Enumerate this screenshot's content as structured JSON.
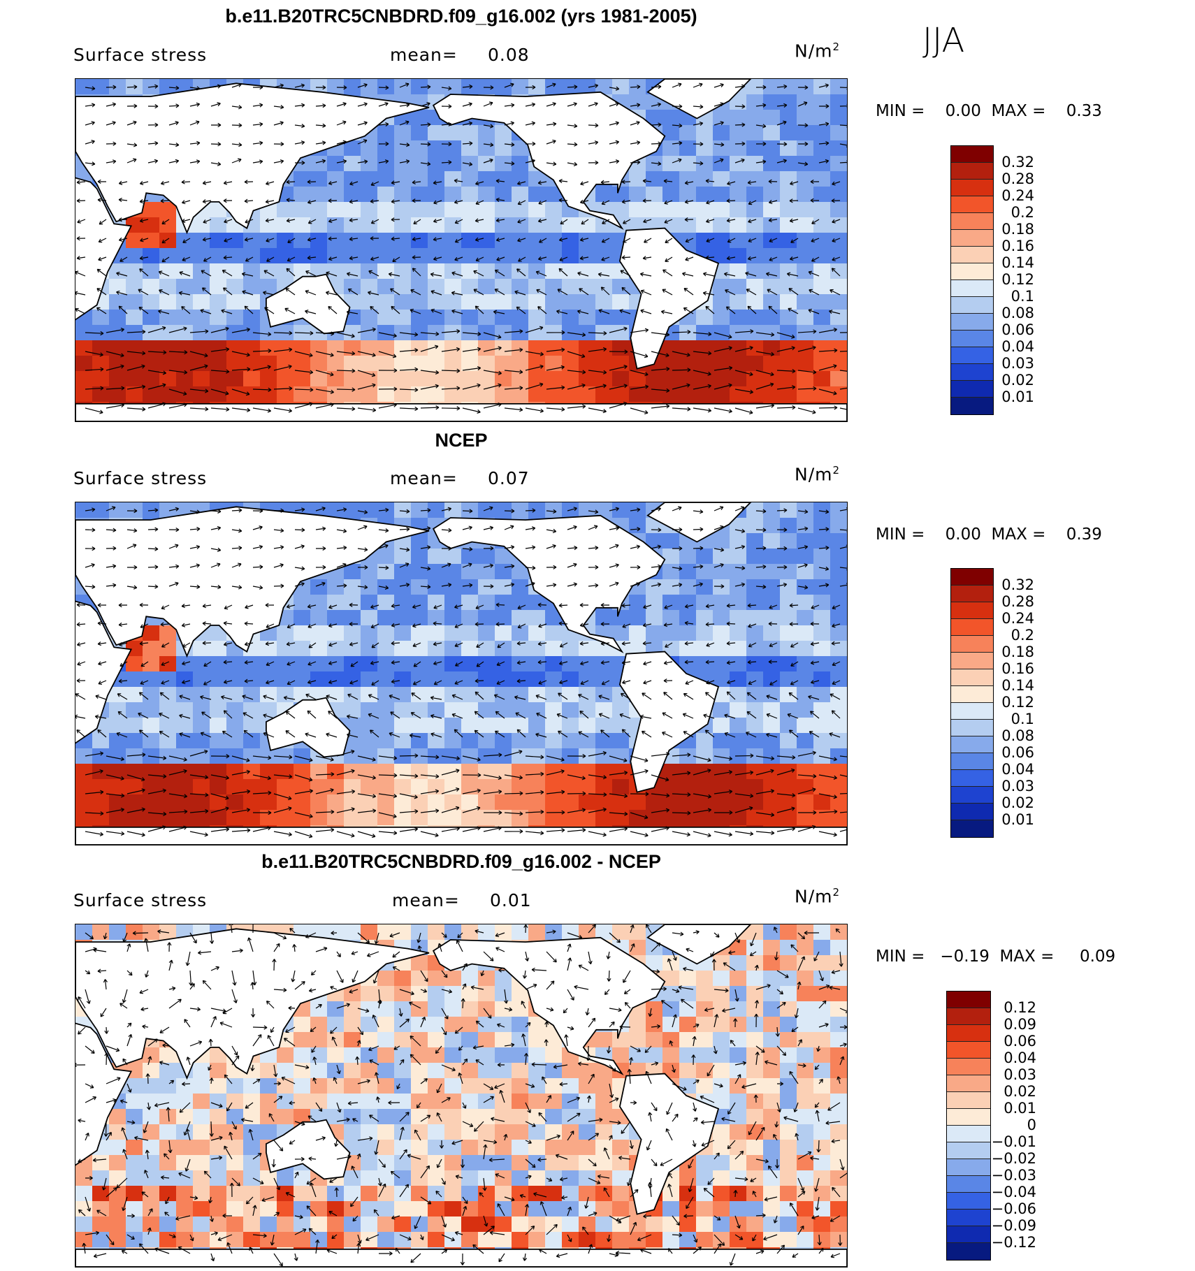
{
  "season": "JJA",
  "panels": [
    {
      "title": "b.e11.B20TRC5CNBDRD.f09_g16.002 (yrs 1981-2005)",
      "variable": "Surface stress",
      "mean_label": "mean=",
      "mean_value": "0.08",
      "units_base": "N/m",
      "units_exp": "2",
      "min_label": "MIN =",
      "min_value": "0.00",
      "max_label": "MAX =",
      "max_value": "0.33",
      "colorbar_labels": [
        "0.32",
        "0.28",
        "0.24",
        "0.2",
        "0.18",
        "0.16",
        "0.14",
        "0.12",
        "0.1",
        "0.08",
        "0.06",
        "0.04",
        "0.03",
        "0.02",
        "0.01"
      ],
      "field": "full"
    },
    {
      "title": "NCEP",
      "variable": "Surface stress",
      "mean_label": "mean=",
      "mean_value": "0.07",
      "units_base": "N/m",
      "units_exp": "2",
      "min_label": "MIN =",
      "min_value": "0.00",
      "max_label": "MAX =",
      "max_value": "0.39",
      "colorbar_labels": [
        "0.32",
        "0.28",
        "0.24",
        "0.2",
        "0.18",
        "0.16",
        "0.14",
        "0.12",
        "0.1",
        "0.08",
        "0.06",
        "0.04",
        "0.03",
        "0.02",
        "0.01"
      ],
      "field": "full"
    },
    {
      "title": "b.e11.B20TRC5CNBDRD.f09_g16.002 - NCEP",
      "variable": "Surface stress",
      "mean_label": "mean=",
      "mean_value": "0.01",
      "units_base": "N/m",
      "units_exp": "2",
      "min_label": "MIN =",
      "min_value": "−0.19",
      "max_label": "MAX =",
      "max_value": "0.09",
      "colorbar_labels": [
        "0.12",
        "0.09",
        "0.06",
        "0.04",
        "0.03",
        "0.02",
        "0.01",
        "0",
        "−0.01",
        "−0.02",
        "−0.03",
        "−0.04",
        "−0.06",
        "−0.09",
        "−0.12"
      ],
      "field": "diff"
    }
  ],
  "colors": {
    "full_scale": [
      "#7f0000",
      "#b3200e",
      "#d73010",
      "#f2552a",
      "#f7825a",
      "#f9a987",
      "#fbd0b5",
      "#fdebd7",
      "#dbe9f7",
      "#b4cdf0",
      "#87aaeb",
      "#5a86e6",
      "#3562e4",
      "#1e43d0",
      "#0f2ab0",
      "#071a80"
    ],
    "diff_scale": [
      "#7f0000",
      "#b3200e",
      "#d73010",
      "#f2552a",
      "#f7825a",
      "#f9a987",
      "#fbd0b5",
      "#fdebd7",
      "#dbe9f7",
      "#b4cdf0",
      "#87aaeb",
      "#5a86e6",
      "#3562e4",
      "#1e43d0",
      "#0f2ab0",
      "#071a80"
    ],
    "land": "#ffffff",
    "coast": "#000000"
  }
}
